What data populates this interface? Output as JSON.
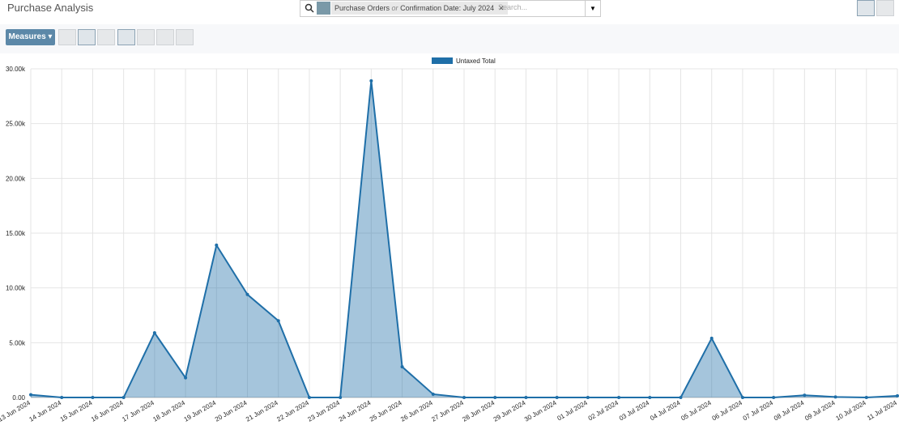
{
  "header": {
    "title": "Purchase Analysis"
  },
  "search": {
    "facet_field": "Purchase Orders",
    "facet_or": "or",
    "facet_value": "Confirmation Date: July 2024",
    "placeholder": "Search..."
  },
  "toolbar": {
    "measures": "Measures"
  },
  "chart_data": {
    "type": "line",
    "area": true,
    "grid": true,
    "legend": "top",
    "categories": [
      "13 Jun 2024",
      "14 Jun 2024",
      "15 Jun 2024",
      "16 Jun 2024",
      "17 Jun 2024",
      "18 Jun 2024",
      "19 Jun 2024",
      "20 Jun 2024",
      "21 Jun 2024",
      "22 Jun 2024",
      "23 Jun 2024",
      "24 Jun 2024",
      "25 Jun 2024",
      "26 Jun 2024",
      "27 Jun 2024",
      "28 Jun 2024",
      "29 Jun 2024",
      "30 Jun 2024",
      "01 Jul 2024",
      "02 Jul 2024",
      "03 Jul 2024",
      "04 Jul 2024",
      "05 Jul 2024",
      "06 Jul 2024",
      "07 Jul 2024",
      "08 Jul 2024",
      "09 Jul 2024",
      "10 Jul 2024",
      "11 Jul 2024"
    ],
    "series": [
      {
        "name": "Untaxed Total",
        "color": "#1f6fa8",
        "values": [
          250,
          0,
          0,
          0,
          5900,
          1800,
          13900,
          9400,
          7000,
          0,
          0,
          28900,
          2800,
          300,
          0,
          0,
          0,
          0,
          0,
          0,
          0,
          0,
          5400,
          0,
          0,
          200,
          50,
          0,
          150
        ]
      }
    ],
    "ylim": [
      0,
      30000
    ],
    "yticks": [
      {
        "value": 0,
        "label": "0.00"
      },
      {
        "value": 5000,
        "label": "5.00k"
      },
      {
        "value": 10000,
        "label": "10.00k"
      },
      {
        "value": 15000,
        "label": "15.00k"
      },
      {
        "value": 20000,
        "label": "20.00k"
      },
      {
        "value": 25000,
        "label": "25.00k"
      },
      {
        "value": 30000,
        "label": "30.00k"
      }
    ]
  }
}
